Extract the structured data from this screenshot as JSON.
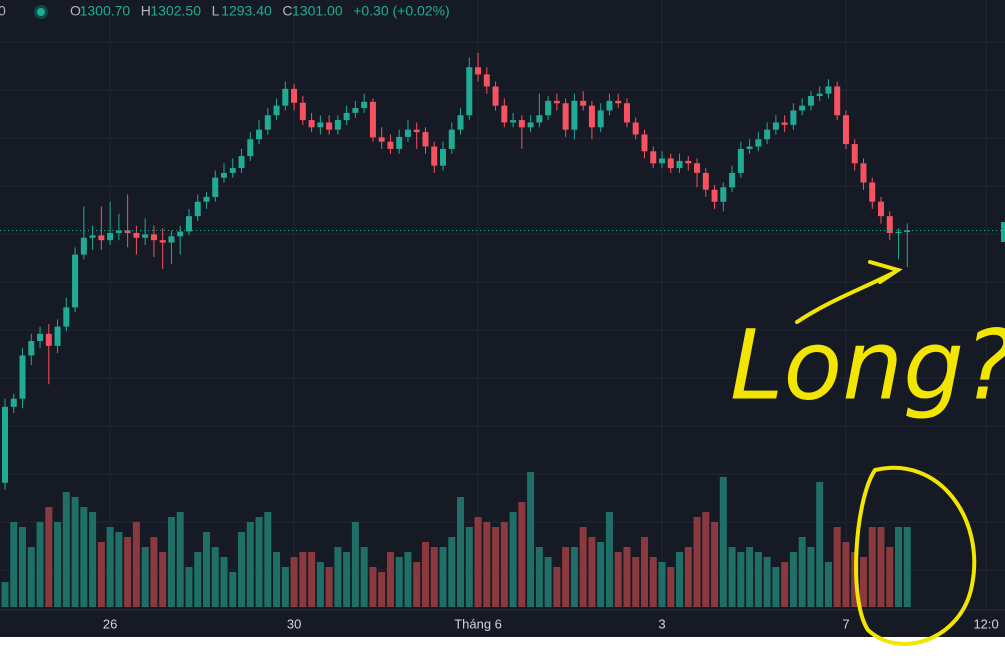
{
  "chart_data": {
    "type": "candlestick",
    "header": {
      "symbol": "0",
      "items": [
        {
          "key": "O",
          "value": "1300.70"
        },
        {
          "key": "H",
          "value": "1302.50"
        },
        {
          "key": "L",
          "value": "1293.40"
        },
        {
          "key": "C",
          "value": "1301.00"
        }
      ],
      "change": "+0.30 (+0.02%)"
    },
    "annotation": {
      "text": "Long?",
      "color": "#f2e600"
    },
    "up_color": "#22ab94",
    "down_color": "#f7525f",
    "volume_up_color": "#1f6f66",
    "volume_down_color": "#8a3a3f",
    "ylim": [
      1222,
      1349
    ],
    "vlim": [
      0,
      150
    ],
    "categories": [
      null,
      null,
      null,
      null,
      null,
      null,
      null,
      null,
      null,
      null,
      null,
      null,
      "26",
      null,
      null,
      null,
      null,
      null,
      null,
      null,
      null,
      null,
      null,
      null,
      null,
      null,
      null,
      null,
      null,
      null,
      null,
      null,
      null,
      "30",
      null,
      null,
      null,
      null,
      null,
      null,
      null,
      null,
      null,
      null,
      null,
      null,
      null,
      null,
      null,
      null,
      null,
      null,
      null,
      null,
      "Tháng 6",
      null,
      null,
      null,
      null,
      null,
      null,
      null,
      null,
      null,
      null,
      null,
      null,
      null,
      null,
      null,
      null,
      null,
      null,
      null,
      null,
      "3",
      null,
      null,
      null,
      null,
      null,
      null,
      null,
      null,
      null,
      null,
      null,
      null,
      null,
      null,
      null,
      null,
      null,
      null,
      null,
      null,
      "7",
      null,
      null,
      null,
      null,
      null,
      null,
      null,
      null,
      null,
      null,
      null,
      null,
      null,
      null,
      null,
      "12:0"
    ],
    "open": [
      1248.5,
      1264.3,
      1266.0,
      1275.0,
      1278.0,
      1279.5,
      1277.0,
      1281.0,
      1285.0,
      1296.0,
      1299.5,
      1300.0,
      1299.0,
      1300.5,
      1301.0,
      1300.5,
      1299.5,
      1300.2,
      1299.0,
      1298.5,
      1299.8,
      1300.8,
      1304.0,
      1307.0,
      1308.0,
      1312.0,
      1313.0,
      1314.0,
      1316.5,
      1320.0,
      1322.0,
      1325.0,
      1327.0,
      1330.5,
      1327.6,
      1324.0,
      1322.5,
      1323.5,
      1322.0,
      1324.0,
      1325.5,
      1326.5,
      1327.8,
      1320.4,
      1319.5,
      1318.0,
      1320.5,
      1322.0,
      1321.5,
      1318.5,
      1314.5,
      1318.0,
      1322.0,
      1325.0,
      1335.0,
      1333.5,
      1331.0,
      1327.0,
      1323.5,
      1324.0,
      1322.5,
      1323.5,
      1325.0,
      1328.0,
      1327.5,
      1322.0,
      1328.0,
      1327.0,
      1322.5,
      1326.0,
      1328.0,
      1327.5,
      1323.5,
      1321.0,
      1317.5,
      1315.0,
      1316.0,
      1314.0,
      1315.5,
      1315.0,
      1313.0,
      1309.5,
      1307.0,
      1310.0,
      1313.0,
      1318.0,
      1318.5,
      1320.0,
      1322.0,
      1323.5,
      1323.0,
      1326.0,
      1327.0,
      1329.0,
      1329.5,
      1331.0,
      1325.0,
      1319.0,
      1315.0,
      1311.0,
      1307.0,
      1304.0,
      1300.5,
      1300.7,
      null,
      null,
      null,
      null,
      null,
      null,
      null,
      null,
      null
    ],
    "high": [
      1266.0,
      1267.0,
      1276.5,
      1279.5,
      1281.0,
      1281.5,
      1282.5,
      1287.0,
      1297.5,
      1306.0,
      1302.0,
      1306.0,
      1307.0,
      1304.5,
      1308.5,
      1302.0,
      1303.5,
      1302.0,
      1301.5,
      1301.0,
      1302.0,
      1305.5,
      1308.5,
      1309.0,
      1313.5,
      1315.0,
      1316.0,
      1318.0,
      1321.5,
      1324.0,
      1326.5,
      1328.5,
      1332.0,
      1331.5,
      1329.0,
      1325.5,
      1325.0,
      1325.0,
      1325.0,
      1327.0,
      1328.0,
      1329.5,
      1328.5,
      1322.5,
      1321.0,
      1322.0,
      1324.0,
      1323.5,
      1322.5,
      1319.5,
      1319.5,
      1323.5,
      1326.5,
      1337.0,
      1338.0,
      1335.0,
      1332.0,
      1328.5,
      1325.5,
      1325.0,
      1325.0,
      1329.5,
      1329.0,
      1329.5,
      1328.5,
      1329.5,
      1330.0,
      1328.0,
      1327.5,
      1329.5,
      1329.5,
      1328.5,
      1324.5,
      1322.0,
      1318.5,
      1317.5,
      1317.0,
      1317.0,
      1316.5,
      1316.0,
      1314.0,
      1310.5,
      1311.0,
      1314.5,
      1319.5,
      1320.0,
      1321.5,
      1323.5,
      1325.0,
      1325.0,
      1327.5,
      1328.5,
      1330.0,
      1331.0,
      1332.5,
      1332.0,
      1326.0,
      1320.0,
      1316.0,
      1312.0,
      1308.0,
      1305.0,
      1301.5,
      1302.5,
      null,
      null,
      null,
      null,
      null,
      null,
      null,
      null,
      null
    ],
    "low": [
      1247.0,
      1263.0,
      1264.0,
      1273.0,
      1276.5,
      1269.0,
      1275.5,
      1280.0,
      1284.0,
      1295.0,
      1297.0,
      1297.0,
      1298.0,
      1299.0,
      1297.5,
      1296.0,
      1298.0,
      1295.5,
      1293.0,
      1294.0,
      1296.0,
      1300.0,
      1303.0,
      1305.5,
      1307.0,
      1311.0,
      1312.0,
      1313.0,
      1315.5,
      1319.0,
      1321.0,
      1324.0,
      1326.0,
      1326.0,
      1323.0,
      1321.5,
      1321.0,
      1321.0,
      1321.0,
      1323.0,
      1324.5,
      1325.5,
      1319.5,
      1318.0,
      1317.0,
      1317.0,
      1319.5,
      1318.0,
      1317.0,
      1313.0,
      1313.5,
      1317.0,
      1321.0,
      1324.0,
      1332.0,
      1329.5,
      1326.0,
      1322.5,
      1322.5,
      1318.0,
      1321.5,
      1322.5,
      1324.0,
      1326.0,
      1320.5,
      1320.0,
      1326.0,
      1320.0,
      1321.5,
      1325.0,
      1326.5,
      1322.5,
      1320.0,
      1316.0,
      1314.0,
      1314.0,
      1313.0,
      1313.0,
      1313.5,
      1310.0,
      1308.0,
      1305.5,
      1305.0,
      1309.0,
      1312.0,
      1317.0,
      1317.5,
      1319.0,
      1321.0,
      1321.5,
      1322.0,
      1325.0,
      1326.0,
      1328.0,
      1328.5,
      1324.0,
      1318.0,
      1313.5,
      1309.5,
      1305.5,
      1302.5,
      1299.0,
      1295.0,
      1293.4,
      null,
      null,
      null,
      null,
      null,
      null,
      null,
      null,
      null
    ],
    "close": [
      1264.3,
      1266.0,
      1275.0,
      1278.0,
      1279.5,
      1277.0,
      1281.0,
      1285.0,
      1296.0,
      1299.5,
      1300.0,
      1299.0,
      1300.5,
      1301.0,
      1300.5,
      1299.5,
      1300.2,
      1299.0,
      1298.5,
      1299.8,
      1300.8,
      1304.0,
      1307.0,
      1308.0,
      1312.0,
      1313.0,
      1314.0,
      1316.5,
      1320.0,
      1322.0,
      1325.0,
      1327.0,
      1330.5,
      1327.6,
      1324.0,
      1322.5,
      1323.5,
      1322.0,
      1324.0,
      1325.5,
      1326.5,
      1327.8,
      1320.4,
      1319.5,
      1318.0,
      1320.5,
      1322.0,
      1321.5,
      1318.5,
      1314.5,
      1318.0,
      1322.0,
      1325.0,
      1335.0,
      1333.5,
      1331.0,
      1327.0,
      1323.5,
      1324.0,
      1322.5,
      1323.5,
      1325.0,
      1328.0,
      1327.5,
      1322.0,
      1328.0,
      1327.0,
      1322.5,
      1326.0,
      1328.0,
      1327.5,
      1323.5,
      1321.0,
      1317.5,
      1315.0,
      1316.0,
      1314.0,
      1315.5,
      1315.0,
      1313.0,
      1309.5,
      1307.0,
      1310.0,
      1313.0,
      1318.0,
      1318.5,
      1320.0,
      1322.0,
      1323.5,
      1323.0,
      1326.0,
      1327.0,
      1329.0,
      1329.5,
      1331.0,
      1325.0,
      1319.0,
      1315.0,
      1311.0,
      1307.0,
      1304.0,
      1300.5,
      1300.7,
      1301.0,
      null,
      null,
      null,
      null,
      null,
      null,
      null,
      null,
      null
    ],
    "volume": [
      25,
      85,
      80,
      60,
      85,
      100,
      85,
      115,
      110,
      100,
      95,
      65,
      80,
      75,
      70,
      85,
      60,
      70,
      55,
      90,
      95,
      40,
      55,
      75,
      60,
      50,
      35,
      75,
      85,
      90,
      95,
      55,
      40,
      50,
      55,
      55,
      45,
      40,
      60,
      55,
      85,
      60,
      40,
      35,
      55,
      50,
      55,
      45,
      65,
      60,
      60,
      70,
      110,
      80,
      90,
      85,
      80,
      85,
      95,
      105,
      135,
      60,
      50,
      40,
      60,
      60,
      80,
      70,
      65,
      95,
      55,
      60,
      50,
      70,
      50,
      45,
      40,
      55,
      60,
      90,
      95,
      85,
      130,
      60,
      55,
      60,
      55,
      50,
      40,
      45,
      55,
      70,
      60,
      125,
      45,
      80,
      65,
      55,
      50,
      80,
      80,
      60,
      80,
      80,
      null,
      null,
      null,
      null,
      null,
      null,
      null,
      null,
      null
    ]
  }
}
